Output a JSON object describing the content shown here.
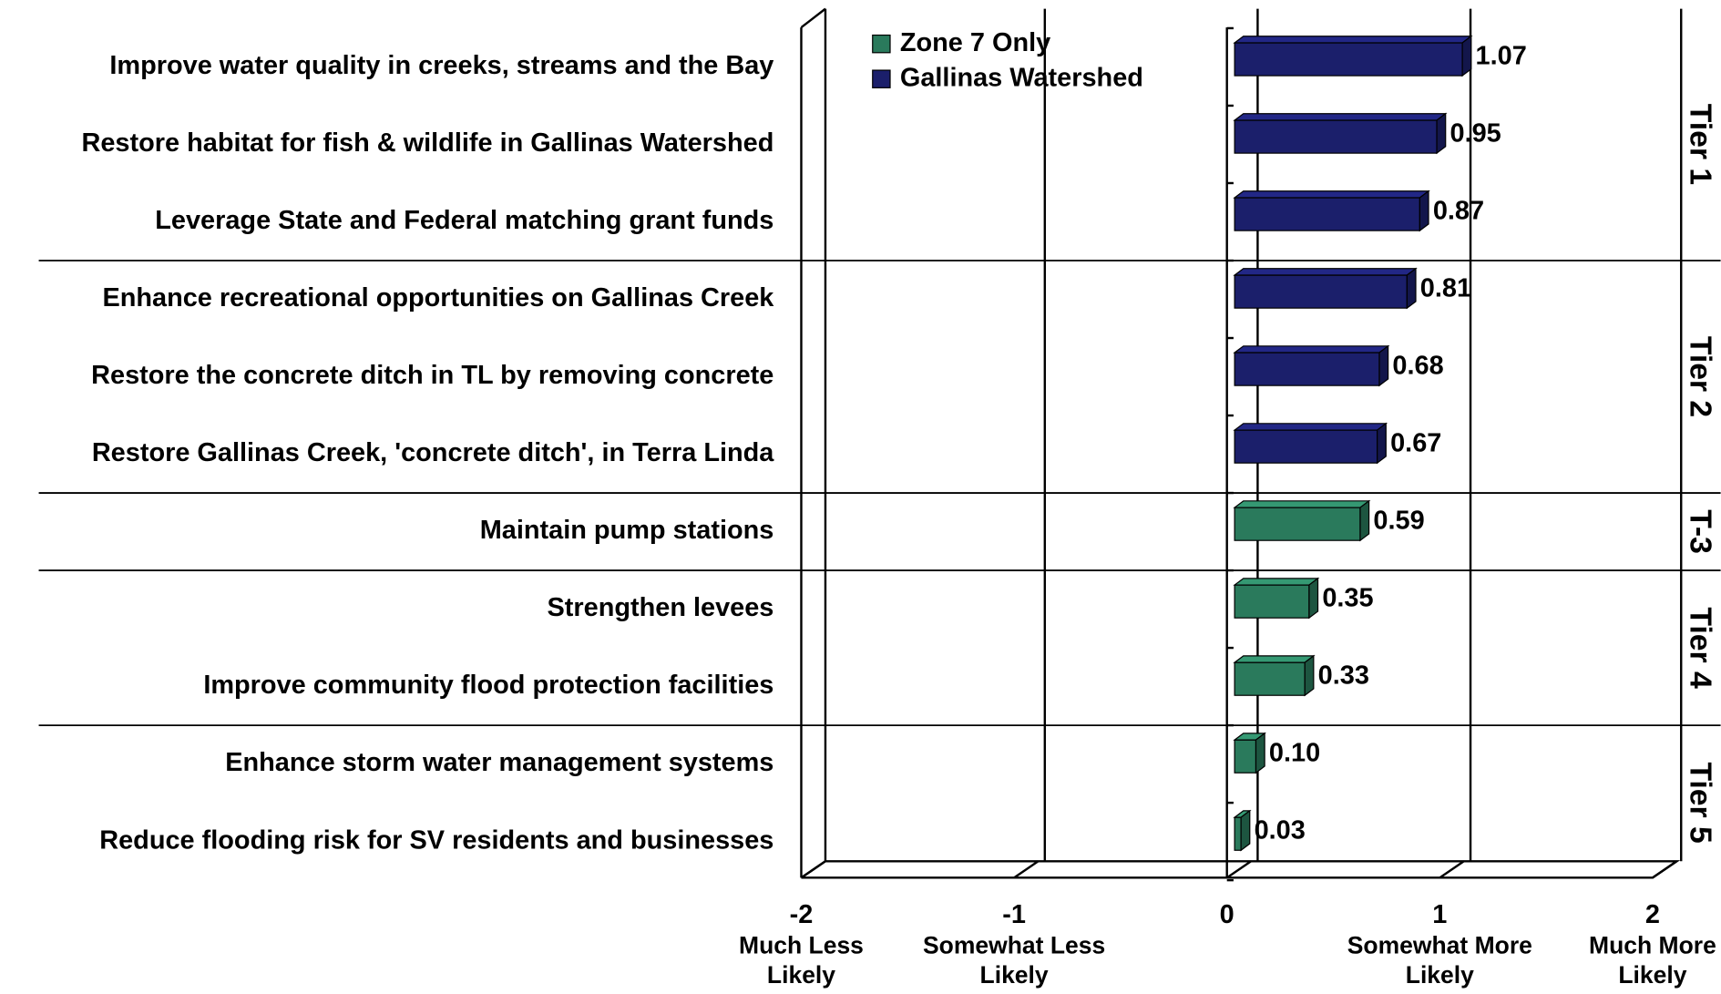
{
  "chart_data": {
    "type": "bar",
    "orientation": "horizontal",
    "categories": [
      "Improve water quality in creeks, streams and the Bay",
      "Restore habitat for fish & wildlife in Gallinas Watershed",
      "Leverage State and Federal matching grant funds",
      "Enhance recreational opportunities on Gallinas Creek",
      "Restore the concrete ditch in TL by removing concrete",
      "Restore Gallinas Creek, 'concrete ditch', in Terra Linda",
      "Maintain pump stations",
      "Strengthen levees",
      "Improve community flood protection facilities",
      "Enhance storm water management systems",
      "Reduce flooding risk for SV residents and businesses"
    ],
    "series": [
      {
        "name": "Zone 7 Only",
        "color": "#2a7a5c",
        "values": [
          null,
          null,
          null,
          null,
          null,
          null,
          0.59,
          0.35,
          0.33,
          0.1,
          0.03
        ],
        "value_labels": [
          null,
          null,
          null,
          null,
          null,
          null,
          "0.59",
          "0.35",
          "0.33",
          "0.10",
          "0.03"
        ]
      },
      {
        "name": "Gallinas Watershed",
        "color": "#1b1f6b",
        "values": [
          1.07,
          0.95,
          0.87,
          0.81,
          0.68,
          0.67,
          null,
          null,
          null,
          null,
          null
        ],
        "value_labels": [
          "1.07",
          "0.95",
          "0.87",
          "0.81",
          "0.68",
          "0.67",
          null,
          null,
          null,
          null,
          null
        ]
      }
    ],
    "xlim": [
      -2,
      2
    ],
    "xticks": [
      -2,
      -1,
      0,
      1,
      2
    ],
    "xtick_descriptions": [
      "Much Less Likely",
      "Somewhat Less Likely",
      null,
      "Somewhat More Likely",
      "Much More Likely"
    ],
    "tiers": [
      {
        "label": "Tier 1",
        "count": 3
      },
      {
        "label": "Tier 2",
        "count": 3
      },
      {
        "label": "T-3",
        "count": 1
      },
      {
        "label": "Tier 4",
        "count": 2
      },
      {
        "label": "Tier 5",
        "count": 2
      }
    ],
    "grid": true
  }
}
